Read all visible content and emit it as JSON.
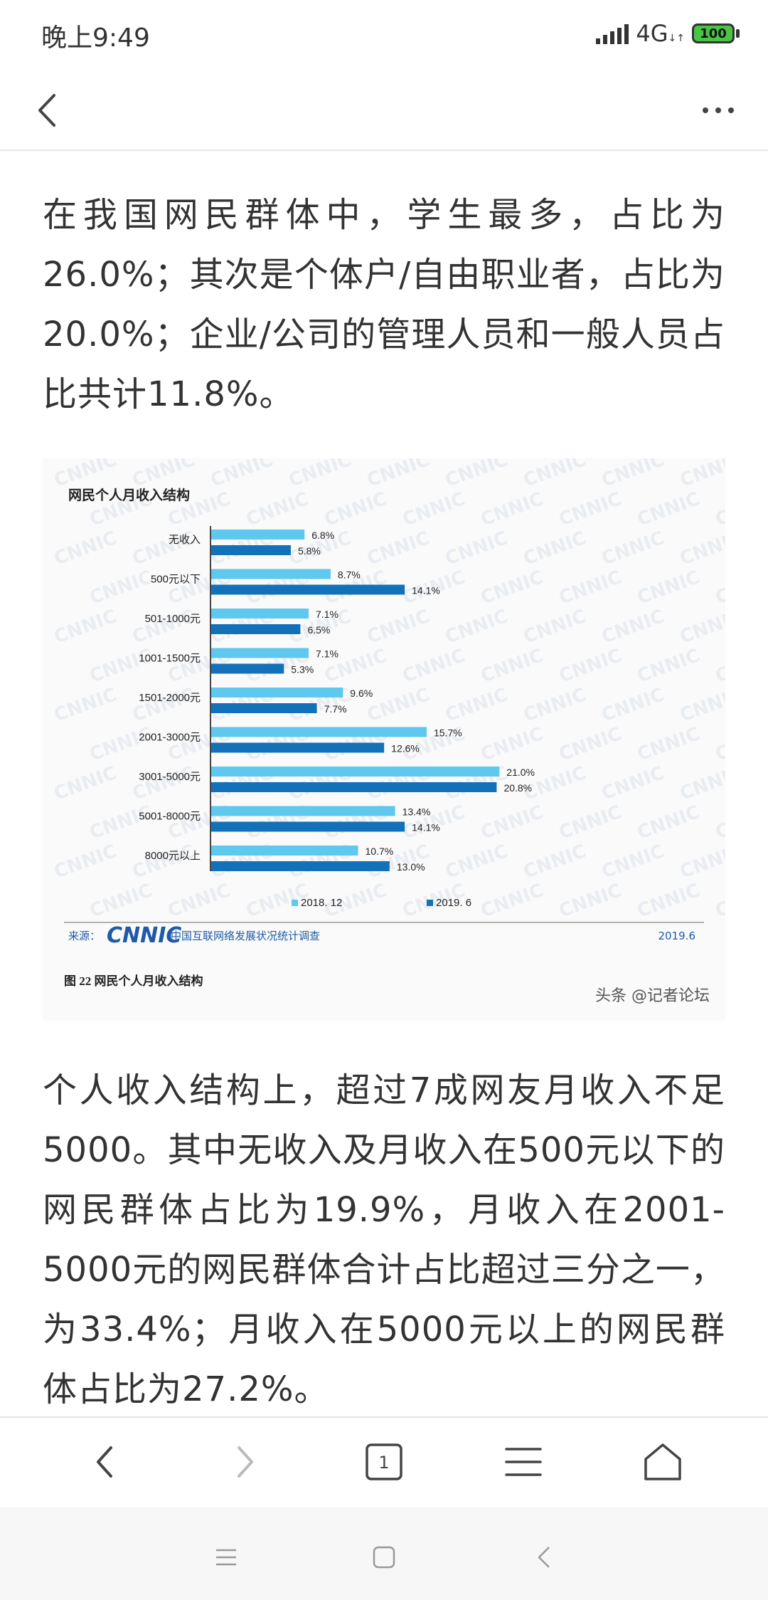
{
  "status_bar": {
    "time": "晚上9:49",
    "network": "4G",
    "battery": "100"
  },
  "article": {
    "paragraph1": "在我国网民群体中，学生最多，占比为26.0%；其次是个体户/自由职业者，占比为20.0%；企业/公司的管理人员和一般人员占比共计11.8%。",
    "paragraph2": "个人收入结构上，超过7成网友月收入不足5000。其中无收入及月收入在500元以下的网民群体占比为19.9%，月收入在2001-5000元的网民群体合计占比超过三分之一，为33.4%；月收入在5000元以上的网民群体占比为27.2%。"
  },
  "figure": {
    "source_prefix": "来源：",
    "source_logo": "CNNIC",
    "source_org": "中国互联网络发展状况统计调查",
    "source_date": "2019.6",
    "caption": "图 22   网民个人月收入结构",
    "watermark": "头条 @记者论坛",
    "background_watermark": "CNNIC"
  },
  "chart_data": {
    "type": "bar",
    "orientation": "horizontal",
    "title": "网民个人月收入结构",
    "categories": [
      "无收入",
      "500元以下",
      "501-1000元",
      "1001-1500元",
      "1501-2000元",
      "2001-3000元",
      "3001-5000元",
      "5001-8000元",
      "8000元以上"
    ],
    "series": [
      {
        "name": "2018. 12",
        "color": "#5ec8ee",
        "values": [
          6.8,
          8.7,
          7.1,
          7.1,
          9.6,
          15.7,
          21.0,
          13.4,
          10.7
        ]
      },
      {
        "name": "2019. 6",
        "color": "#1371b9",
        "values": [
          5.8,
          14.1,
          6.5,
          5.3,
          7.7,
          12.6,
          20.8,
          14.1,
          13.0
        ]
      }
    ],
    "value_suffix": "%",
    "legend_position": "bottom",
    "grid": false
  },
  "toolbar": {
    "tabs_count": "1"
  },
  "colors": {
    "series_2018": "#5ec8ee",
    "series_2019": "#1371b9",
    "battery": "#49c447"
  }
}
